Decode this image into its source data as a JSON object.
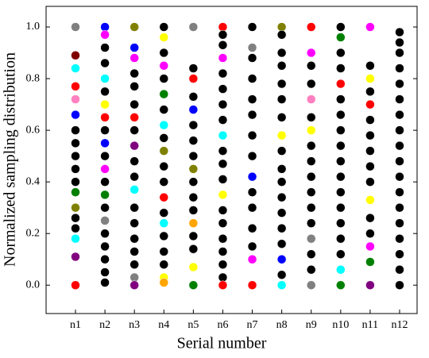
{
  "chart_data": {
    "type": "strip",
    "x_label": "Serial number",
    "y_label": "Normalized sampling distribution",
    "categories": [
      "n1",
      "n2",
      "n3",
      "n4",
      "n5",
      "n6",
      "n7",
      "n8",
      "n9",
      "n10",
      "n11",
      "n12"
    ],
    "ylim": [
      -0.11,
      1.08
    ],
    "yticks": [
      {
        "value": 0,
        "label": "0.0"
      },
      {
        "value": 0.2,
        "label": "0.2"
      },
      {
        "value": 0.4,
        "label": "0.4"
      },
      {
        "value": 0.6,
        "label": "0.6"
      },
      {
        "value": 0.8,
        "label": "0.8"
      },
      {
        "value": 1,
        "label": "1.0"
      }
    ],
    "grid": false,
    "values": [
      [
        1.0,
        0.89,
        0.84,
        0.77,
        0.72,
        0.66,
        0.6,
        0.55,
        0.5,
        0.45,
        0.4,
        0.36,
        0.3,
        0.26,
        0.22,
        0.18,
        0.11,
        0.0
      ],
      [
        1.0,
        0.97,
        0.92,
        0.86,
        0.8,
        0.75,
        0.7,
        0.65,
        0.6,
        0.55,
        0.5,
        0.45,
        0.4,
        0.35,
        0.3,
        0.25,
        0.2,
        0.15,
        0.1,
        0.05,
        0.01
      ],
      [
        1.0,
        0.92,
        0.88,
        0.82,
        0.77,
        0.7,
        0.65,
        0.6,
        0.54,
        0.48,
        0.42,
        0.37,
        0.3,
        0.24,
        0.18,
        0.13,
        0.08,
        0.03,
        0.0
      ],
      [
        1.0,
        0.96,
        0.9,
        0.85,
        0.8,
        0.74,
        0.68,
        0.62,
        0.57,
        0.52,
        0.46,
        0.4,
        0.34,
        0.28,
        0.24,
        0.19,
        0.13,
        0.08,
        0.03,
        0.01
      ],
      [
        1.0,
        0.84,
        0.8,
        0.73,
        0.68,
        0.62,
        0.56,
        0.5,
        0.45,
        0.4,
        0.34,
        0.29,
        0.24,
        0.19,
        0.14,
        0.07,
        0.0
      ],
      [
        1.0,
        0.97,
        0.93,
        0.88,
        0.82,
        0.76,
        0.7,
        0.64,
        0.58,
        0.52,
        0.47,
        0.41,
        0.35,
        0.29,
        0.24,
        0.18,
        0.13,
        0.08,
        0.03,
        0.0
      ],
      [
        1.0,
        0.92,
        0.88,
        0.8,
        0.72,
        0.66,
        0.58,
        0.5,
        0.42,
        0.36,
        0.3,
        0.22,
        0.15,
        0.1,
        0.0
      ],
      [
        1.0,
        0.97,
        0.9,
        0.85,
        0.78,
        0.72,
        0.65,
        0.58,
        0.52,
        0.45,
        0.4,
        0.34,
        0.28,
        0.22,
        0.16,
        0.1,
        0.04,
        0.0
      ],
      [
        1.0,
        0.9,
        0.85,
        0.78,
        0.72,
        0.65,
        0.6,
        0.54,
        0.48,
        0.42,
        0.36,
        0.3,
        0.24,
        0.18,
        0.12,
        0.06,
        0.0
      ],
      [
        1.0,
        0.96,
        0.9,
        0.84,
        0.78,
        0.72,
        0.66,
        0.6,
        0.54,
        0.48,
        0.42,
        0.36,
        0.3,
        0.24,
        0.18,
        0.12,
        0.06,
        0.0
      ],
      [
        1.0,
        0.85,
        0.8,
        0.75,
        0.7,
        0.64,
        0.58,
        0.52,
        0.46,
        0.4,
        0.33,
        0.26,
        0.2,
        0.15,
        0.09,
        0.0
      ],
      [
        0.98,
        0.94,
        0.9,
        0.84,
        0.78,
        0.72,
        0.66,
        0.6,
        0.54,
        0.48,
        0.42,
        0.36,
        0.3,
        0.24,
        0.18,
        0.12,
        0.06,
        0.0
      ]
    ],
    "colors": [
      [
        "gray",
        "maroon",
        "cyan",
        "red",
        "#ff80c0",
        "blue",
        "black",
        "black",
        "black",
        "black",
        "black",
        "green",
        "olive",
        "black",
        "black",
        "cyan",
        "purple",
        "red"
      ],
      [
        "blue",
        "magenta",
        "black",
        "black",
        "cyan",
        "black",
        "yellow",
        "red",
        "black",
        "blue",
        "black",
        "magenta",
        "black",
        "green",
        "black",
        "gray",
        "black",
        "black",
        "black",
        "black",
        "black"
      ],
      [
        "olive",
        "blue",
        "magenta",
        "black",
        "black",
        "black",
        "red",
        "black",
        "purple",
        "black",
        "black",
        "cyan",
        "black",
        "black",
        "black",
        "black",
        "black",
        "gray",
        "purple"
      ],
      [
        "black",
        "yellow",
        "black",
        "magenta",
        "black",
        "green",
        "black",
        "cyan",
        "black",
        "olive",
        "black",
        "black",
        "red",
        "black",
        "cyan",
        "black",
        "black",
        "black",
        "yellow",
        "orange"
      ],
      [
        "gray",
        "black",
        "red",
        "black",
        "blue",
        "black",
        "black",
        "black",
        "olive",
        "black",
        "black",
        "black",
        "orange",
        "black",
        "black",
        "yellow",
        "green"
      ],
      [
        "red",
        "black",
        "black",
        "magenta",
        "black",
        "black",
        "black",
        "black",
        "cyan",
        "black",
        "black",
        "black",
        "yellow",
        "black",
        "black",
        "black",
        "black",
        "black",
        "black",
        "red"
      ],
      [
        "black",
        "gray",
        "black",
        "black",
        "black",
        "black",
        "black",
        "black",
        "blue",
        "black",
        "black",
        "black",
        "black",
        "magenta",
        "red"
      ],
      [
        "olive",
        "black",
        "black",
        "black",
        "black",
        "black",
        "black",
        "yellow",
        "black",
        "black",
        "black",
        "black",
        "black",
        "black",
        "black",
        "blue",
        "black",
        "cyan"
      ],
      [
        "red",
        "magenta",
        "black",
        "black",
        "#ff80c0",
        "black",
        "yellow",
        "black",
        "black",
        "black",
        "black",
        "black",
        "black",
        "gray",
        "black",
        "black",
        "gray"
      ],
      [
        "black",
        "green",
        "black",
        "black",
        "red",
        "black",
        "black",
        "black",
        "black",
        "black",
        "black",
        "black",
        "black",
        "black",
        "black",
        "black",
        "cyan",
        "green"
      ],
      [
        "magenta",
        "black",
        "yellow",
        "black",
        "red",
        "black",
        "black",
        "black",
        "black",
        "black",
        "yellow",
        "black",
        "black",
        "magenta",
        "green",
        "purple"
      ],
      [
        "black",
        "black",
        "black",
        "black",
        "black",
        "black",
        "black",
        "black",
        "black",
        "black",
        "black",
        "black",
        "black",
        "black",
        "black",
        "black",
        "black",
        "black"
      ]
    ]
  }
}
